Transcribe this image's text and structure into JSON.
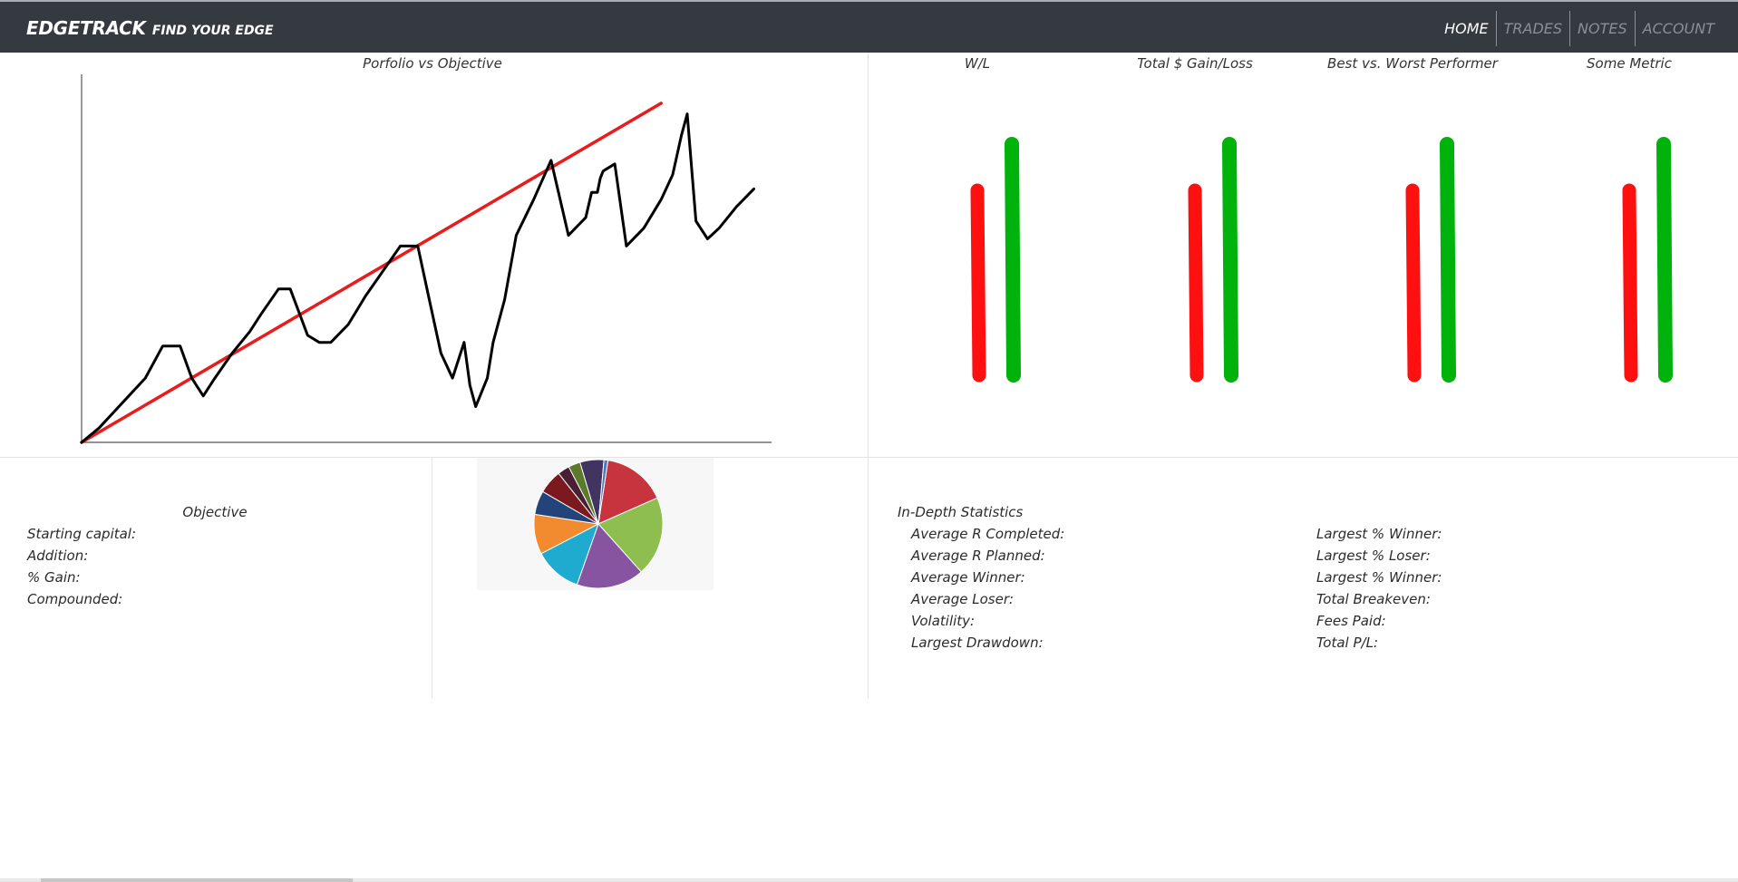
{
  "colors": {
    "navbar_bg": "#343a40",
    "nav_active": "#ffffff",
    "nav_inactive": "#8b9096",
    "objective_line": "#e81c1c",
    "portfolio_line": "#000000",
    "bar_loss": "#ff1010",
    "bar_gain": "#00b30c"
  },
  "brand": {
    "name": "EDGETRACK",
    "tagline": "FIND YOUR EDGE"
  },
  "nav": [
    {
      "label": "HOME",
      "active": true
    },
    {
      "label": "TRADES",
      "active": false
    },
    {
      "label": "NOTES",
      "active": false
    },
    {
      "label": "ACCOUNT",
      "active": false
    }
  ],
  "portfolio_title": "Porfolio vs Objective",
  "metric_titles": [
    "W/L",
    "Total $ Gain/Loss",
    "Best vs. Worst Performer",
    "Some Metric"
  ],
  "objective": {
    "title": "Objective",
    "items": [
      "Starting capital:",
      "Addition:",
      "% Gain:",
      "Compounded:"
    ]
  },
  "stats": {
    "title": "In-Depth Statistics",
    "left": [
      "Average R Completed:",
      "Average R Planned:",
      "Average Winner:",
      "Average Loser:",
      "Volatility:",
      "Largest Drawdown:"
    ],
    "right": [
      "Largest % Winner:",
      "Largest % Loser:",
      "Largest % Winner:",
      "Total Breakeven:",
      "Fees Paid:",
      "Total P/L:"
    ]
  },
  "chart_data": [
    {
      "type": "line",
      "title": "Porfolio vs Objective",
      "xlim": [
        0,
        100
      ],
      "ylim": [
        0,
        100
      ],
      "series": [
        {
          "values_x": [
            0,
            100
          ],
          "values_y": [
            0,
            95
          ]
        },
        {
          "values_x": [
            0,
            3,
            7,
            11,
            14,
            17,
            19,
            21,
            23,
            26,
            29,
            31,
            34,
            36,
            39,
            41,
            43,
            46,
            49,
            52,
            55,
            58,
            60,
            62,
            64,
            66,
            67,
            68,
            70,
            71,
            73,
            75,
            78,
            81,
            84,
            87,
            88,
            89,
            89.5,
            90,
            92,
            94,
            97,
            100,
            102,
            103.5,
            104.5,
            106,
            108,
            110,
            113,
            116
          ],
          "values_y": [
            0,
            4,
            11,
            18,
            27,
            27,
            18,
            13,
            18,
            25,
            31,
            36,
            43,
            43,
            30,
            28,
            28,
            33,
            41,
            48,
            55,
            55,
            40,
            25,
            18,
            28,
            16,
            10,
            18,
            28,
            40,
            58,
            68,
            79,
            58,
            63,
            70,
            70,
            74,
            76,
            78,
            55,
            60,
            68,
            75,
            86,
            92,
            62,
            57,
            60,
            66,
            71
          ]
        }
      ]
    },
    {
      "type": "bar",
      "categories": [
        "W/L",
        "Total $ Gain/Loss",
        "Best vs. Worst Performer",
        "Some Metric"
      ],
      "series": [
        {
          "values": [
            60,
            60,
            60,
            60
          ]
        },
        {
          "values": [
            75,
            75,
            75,
            75
          ]
        }
      ]
    },
    {
      "type": "pie",
      "values": [
        16,
        20,
        17,
        12,
        10,
        6,
        6,
        3,
        3,
        6,
        1
      ],
      "colors": [
        "#c7343e",
        "#8dbe4f",
        "#8754a2",
        "#1fabcf",
        "#f28a2f",
        "#23447a",
        "#7a1a1f",
        "#4a1f33",
        "#5b7a2c",
        "#423460",
        "#4d78c0"
      ]
    }
  ]
}
